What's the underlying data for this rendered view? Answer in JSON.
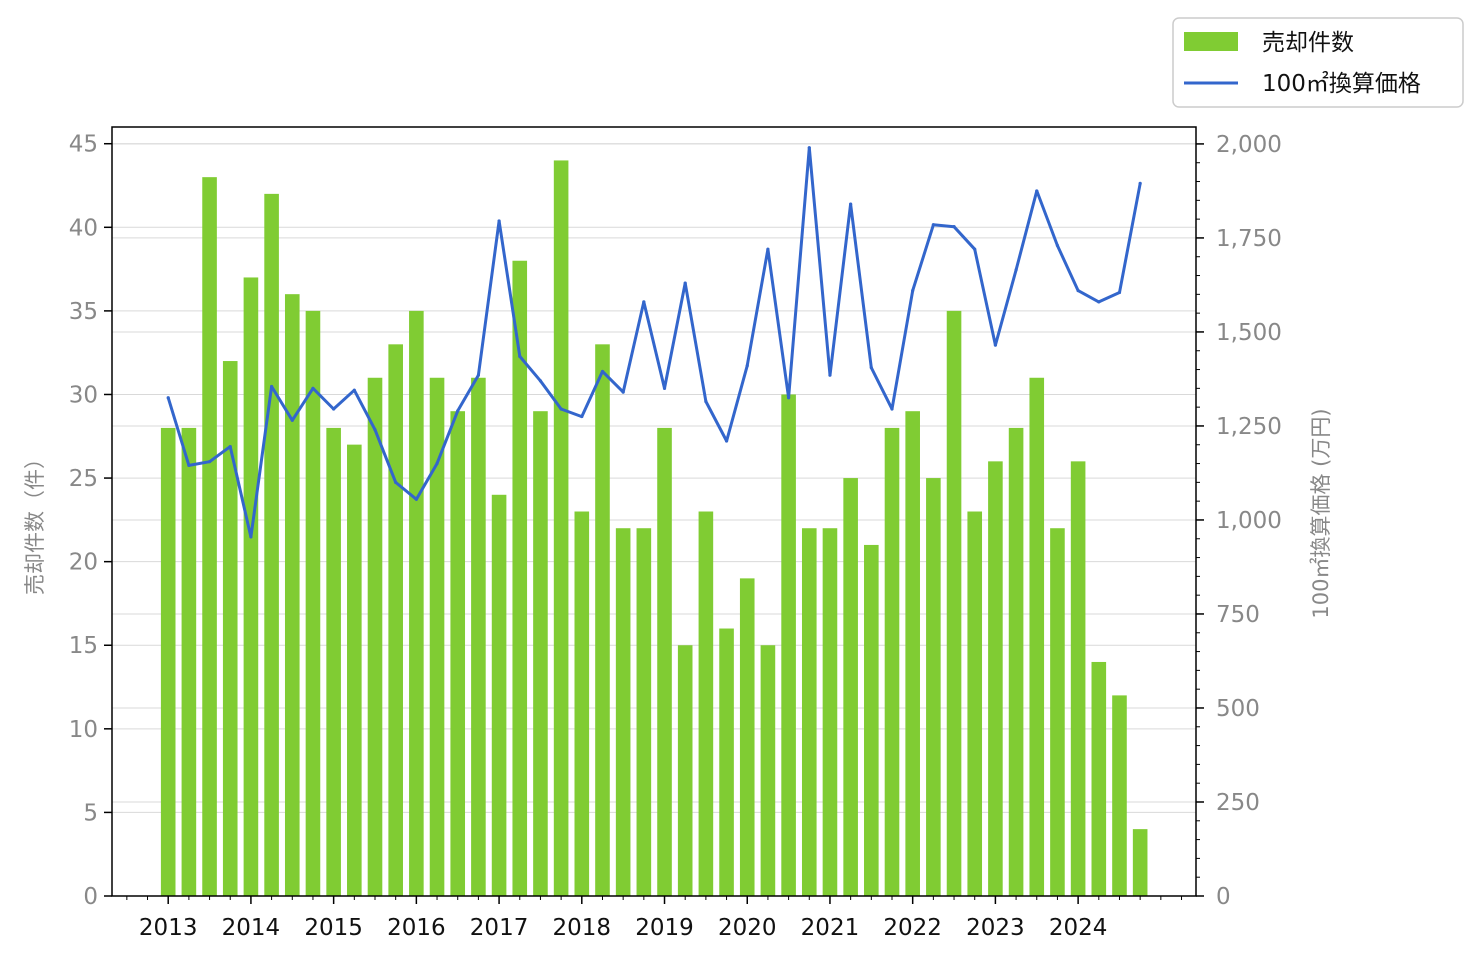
{
  "colors": {
    "bar": "#80cc33",
    "line": "#3366cc",
    "grid": "#d9d9d9",
    "axis": "#000000",
    "tick_label": "#888888",
    "year_label": "#111111"
  },
  "legend": {
    "placement": "top-right",
    "items": [
      {
        "label": "売却件数",
        "kind": "bar"
      },
      {
        "label": "100㎡換算価格",
        "kind": "line"
      }
    ]
  },
  "chart_data": {
    "type": "bar+line",
    "grid": true,
    "x_labels": [
      "2013",
      "2014",
      "2015",
      "2016",
      "2017",
      "2018",
      "2019",
      "2020",
      "2021",
      "2022",
      "2023",
      "2024"
    ],
    "series": [
      {
        "name": "売却件数",
        "type": "bar",
        "axis": "left",
        "values": [
          28,
          28,
          43,
          32,
          37,
          42,
          36,
          35,
          28,
          27,
          31,
          33,
          35,
          31,
          29,
          31,
          24,
          38,
          29,
          44,
          23,
          33,
          22,
          22,
          28,
          15,
          23,
          16,
          19,
          15,
          30,
          22,
          22,
          25,
          21,
          28,
          29,
          25,
          35,
          23,
          26,
          28,
          31,
          22,
          26,
          14,
          12,
          4
        ]
      },
      {
        "name": "100㎡換算価格",
        "type": "line",
        "axis": "right",
        "values": [
          1325,
          1145,
          1155,
          1195,
          955,
          1355,
          1265,
          1350,
          1295,
          1345,
          1240,
          1100,
          1055,
          1150,
          1290,
          1385,
          1795,
          1435,
          1370,
          1295,
          1275,
          1395,
          1340,
          1580,
          1350,
          1630,
          1315,
          1210,
          1410,
          1720,
          1325,
          1990,
          1385,
          1840,
          1405,
          1295,
          1610,
          1785,
          1780,
          1720,
          1465,
          1665,
          1875,
          1730,
          1610,
          1580,
          1605,
          1895
        ]
      }
    ],
    "left_axis": {
      "label": "売却件数（件）",
      "ylim": [
        0,
        46
      ],
      "ticks": [
        0,
        5,
        10,
        15,
        20,
        25,
        30,
        35,
        40,
        45
      ],
      "tick_labels": [
        "0",
        "5",
        "10",
        "15",
        "20",
        "25",
        "30",
        "35",
        "40",
        "45"
      ]
    },
    "right_axis": {
      "label": "100㎡換算価格 (万円)",
      "ylim": [
        0,
        2045
      ],
      "ticks": [
        0,
        250,
        500,
        750,
        1000,
        1250,
        1500,
        1750,
        2000
      ],
      "tick_labels": [
        "0",
        "250",
        "500",
        "750",
        "1,000",
        "1,250",
        "1,500",
        "1,750",
        "2,000"
      ]
    }
  }
}
